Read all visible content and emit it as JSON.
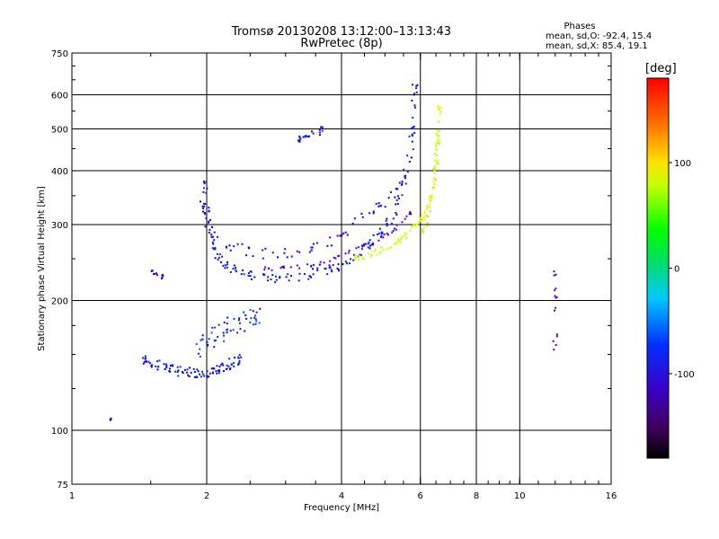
{
  "chart_data": {
    "type": "scatter",
    "title": "Tromsø 20130208 13:12:00–13:13:43",
    "subtitle": "RwPretec (8p)",
    "xlabel": "Frequency [MHz]",
    "ylabel": "Stationary phase Virtual Height [km]",
    "x_scale": "log",
    "y_scale": "log",
    "xlim": [
      1,
      16
    ],
    "ylim": [
      75,
      750
    ],
    "x_ticks": [
      1,
      2,
      4,
      6,
      8,
      10,
      16
    ],
    "x_tick_labels": [
      "1",
      "2",
      "4",
      "6",
      "8",
      "10",
      "16"
    ],
    "y_ticks": [
      75,
      100,
      200,
      300,
      400,
      500,
      600,
      750
    ],
    "y_tick_labels": [
      "75",
      "100",
      "200",
      "300",
      "400",
      "500",
      "600",
      "750"
    ],
    "grid": true,
    "phases_box": {
      "header": "Phases",
      "line_o": "mean, sd,O: -92.4, 15.4",
      "line_x": "mean, sd,X:  85.4, 19.1"
    },
    "colorbar": {
      "label": "[deg]",
      "range": [
        -180,
        180
      ],
      "ticks": [
        100,
        0,
        -100
      ],
      "tick_labels": [
        "100",
        "0",
        "-100"
      ]
    },
    "traces": [
      {
        "x": [
          1.98,
          2.0,
          2.05,
          2.1,
          2.2,
          2.35,
          2.5,
          2.7,
          3.0,
          3.3,
          3.6,
          3.9,
          4.2,
          4.5,
          4.8,
          5.1,
          5.35,
          5.55,
          5.7,
          5.78,
          5.83
        ],
        "y": [
          370,
          320,
          280,
          255,
          242,
          234,
          229,
          226,
          226,
          228,
          233,
          240,
          250,
          262,
          278,
          300,
          335,
          380,
          440,
          520,
          620
        ],
        "phase": -100,
        "spread": 0.05,
        "n": 8
      },
      {
        "x": [
          1.97,
          2.0,
          2.1,
          2.25,
          2.45,
          2.7,
          3.0,
          3.3,
          3.6,
          3.9,
          4.2,
          4.5,
          4.8,
          5.1,
          5.4
        ],
        "y": [
          330,
          305,
          280,
          268,
          262,
          258,
          258,
          262,
          268,
          280,
          295,
          310,
          325,
          345,
          370
        ],
        "phase": -110,
        "spread": 0.06,
        "n": 5
      },
      {
        "x": [
          2.7,
          3.0,
          3.3,
          3.6,
          3.9,
          4.2,
          4.5,
          4.8,
          5.1,
          5.4,
          5.7
        ],
        "y": [
          237,
          238,
          240,
          245,
          252,
          260,
          268,
          276,
          286,
          300,
          320
        ],
        "phase": -135,
        "spread": 0.02,
        "n": 5
      },
      {
        "x": [
          4.3,
          4.6,
          4.9,
          5.2,
          5.5,
          5.8,
          6.0,
          6.2,
          6.35,
          6.45,
          6.52,
          6.58,
          6.62
        ],
        "y": [
          250,
          255,
          262,
          270,
          280,
          294,
          305,
          320,
          345,
          380,
          430,
          490,
          560
        ],
        "phase": 100,
        "spread": 0.03,
        "n": 8
      },
      {
        "x": [
          6.1,
          6.25,
          6.4,
          6.5,
          6.55
        ],
        "y": [
          290,
          320,
          360,
          410,
          480
        ],
        "phase": 90,
        "spread": 0.04,
        "n": 6
      },
      {
        "x": [
          1.45,
          1.55,
          1.65,
          1.75,
          1.85,
          1.95,
          2.05,
          2.15,
          2.25,
          2.35
        ],
        "y": [
          146,
          142,
          139,
          137,
          136,
          136,
          137,
          139,
          142,
          146
        ],
        "phase": -100,
        "spread": 0.05,
        "n": 10
      },
      {
        "x": [
          1.95,
          2.0,
          2.1,
          2.2,
          2.3,
          2.4,
          2.5,
          2.6
        ],
        "y": [
          155,
          162,
          168,
          172,
          176,
          178,
          180,
          183
        ],
        "phase": -90,
        "spread": 0.1,
        "n": 7
      },
      {
        "x": [
          3.2,
          3.4,
          3.6
        ],
        "y": [
          470,
          485,
          495
        ],
        "phase": -100,
        "spread": 0.04,
        "n": 8
      },
      {
        "x": [
          1.5,
          1.6
        ],
        "y": [
          232,
          226
        ],
        "phase": -110,
        "spread": 0.03,
        "n": 6
      },
      {
        "x": [
          12,
          12,
          12
        ],
        "y": [
          155,
          190,
          230
        ],
        "phase": -130,
        "spread": 0.04,
        "n": 5
      },
      {
        "x": [
          1.22
        ],
        "y": [
          106
        ],
        "phase": -110,
        "spread": 0.01,
        "n": 4
      }
    ]
  }
}
